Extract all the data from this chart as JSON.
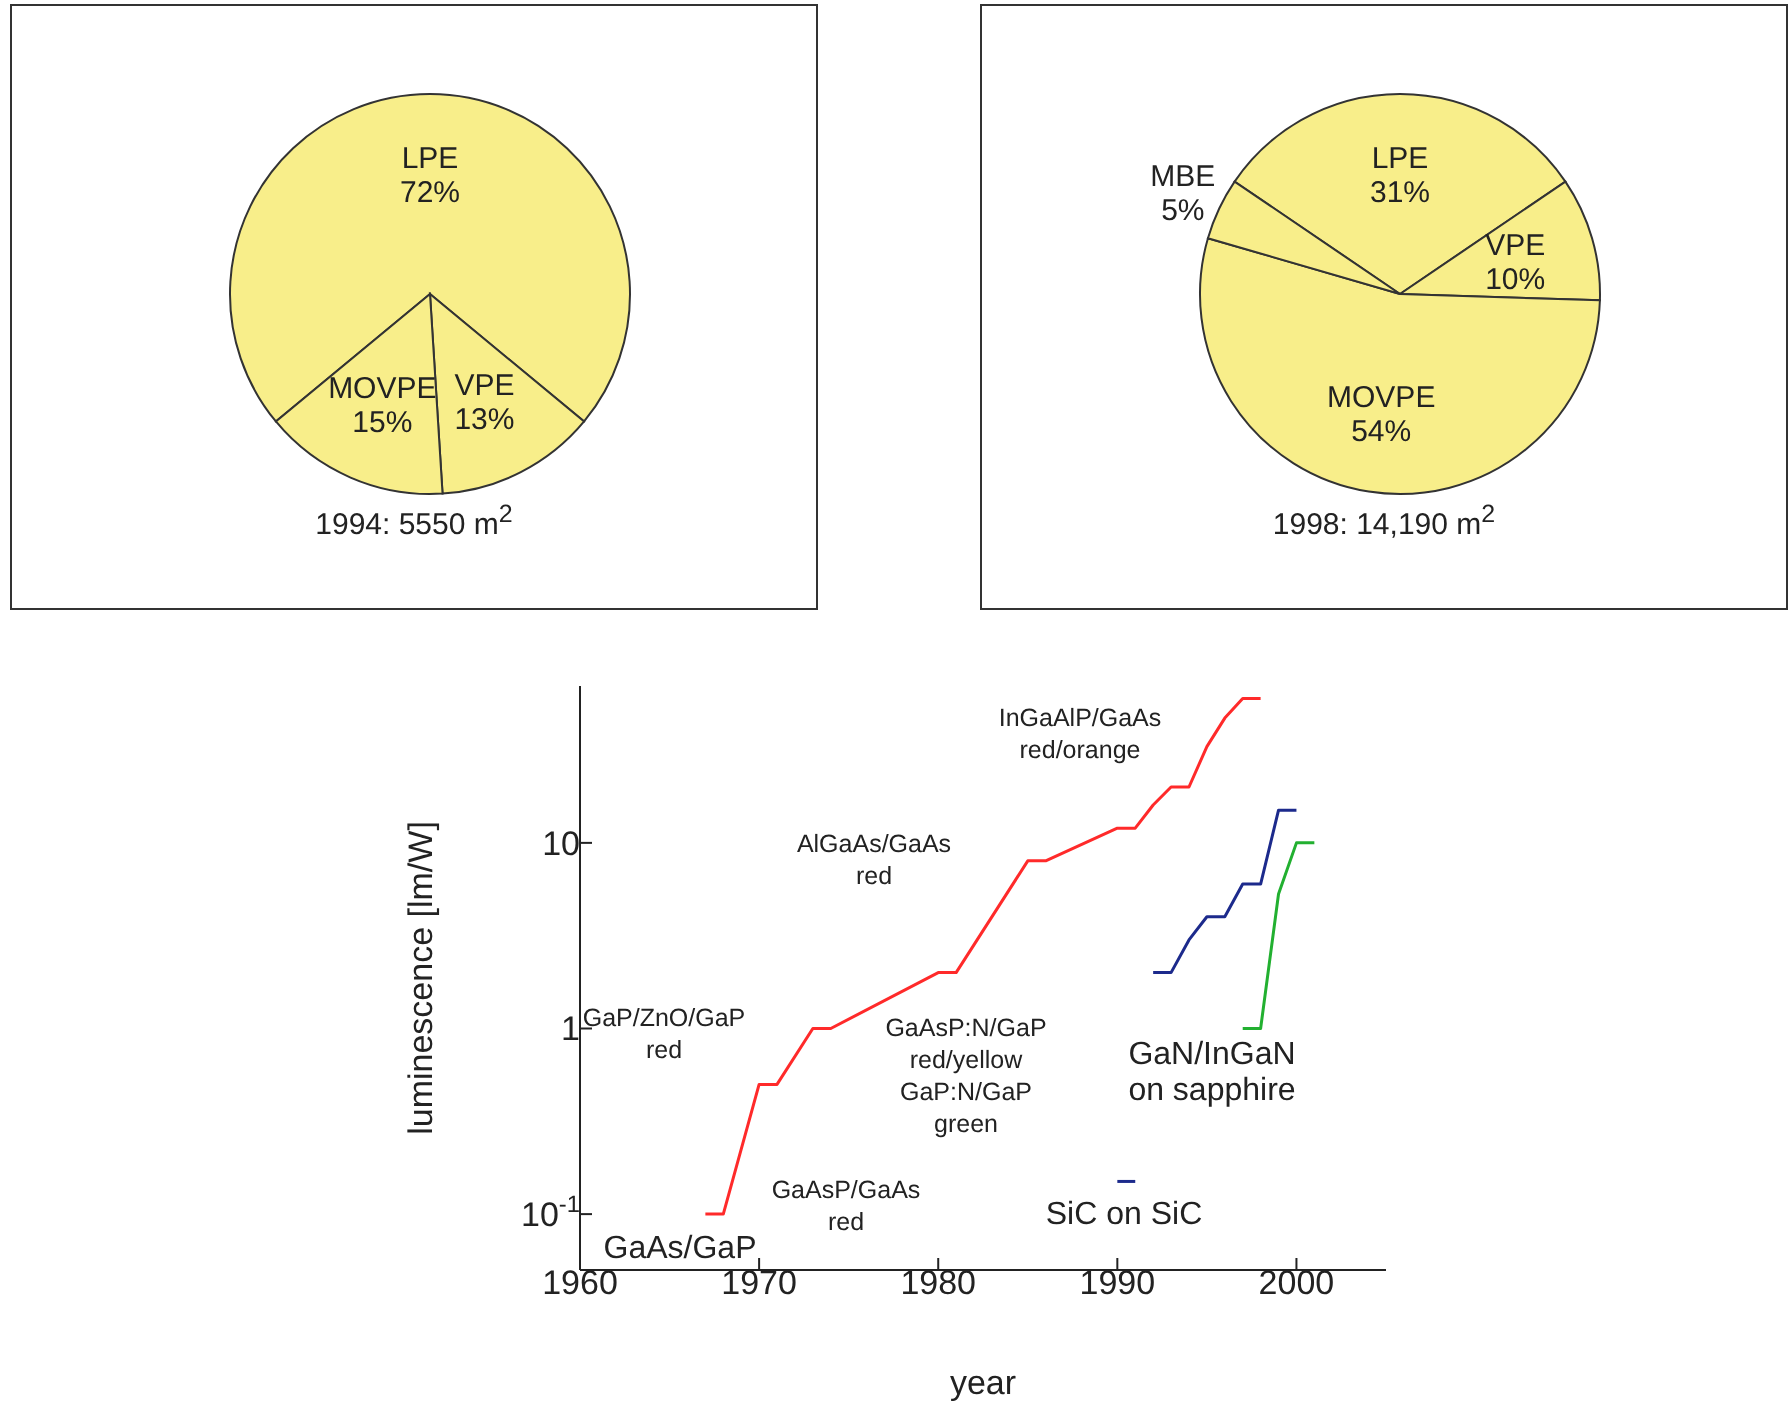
{
  "chart_data": [
    {
      "type": "pie",
      "title": "1994: 5550 m$^{2}$",
      "categories": [
        "LPE",
        "VPE",
        "MOVPE"
      ],
      "values": [
        72,
        13,
        15
      ],
      "value_labels": [
        "72%",
        "13%",
        "15%"
      ],
      "colors": [
        "#f8ee8a",
        "#f8ee8a",
        "#f8ee8a"
      ]
    },
    {
      "type": "pie",
      "title": "1998: 14,190 m$^{2}$",
      "categories": [
        "LPE",
        "VPE",
        "MOVPE",
        "MBE"
      ],
      "values": [
        31,
        10,
        54,
        5
      ],
      "value_labels": [
        "31%",
        "10%",
        "54%",
        "5%"
      ],
      "colors": [
        "#f8ee8a",
        "#f8ee8a",
        "#f8ee8a",
        "#f8ee8a"
      ]
    },
    {
      "type": "line",
      "xlabel": "year",
      "ylabel": "luminescence [lm/W]",
      "log": "y",
      "xlim": [
        1960,
        2005
      ],
      "ylim": [
        0.05,
        70
      ],
      "xticks": [
        1960,
        1970,
        1980,
        1990,
        2000
      ],
      "yticks": [
        {
          "value": 0.1,
          "label": "10$^{-1}$"
        },
        1,
        10
      ],
      "series": [
        {
          "color": "#ff2a2a",
          "x": [
            1967,
            1968,
            1970,
            1971,
            1973,
            1974,
            1980,
            1981,
            1985,
            1986,
            1990,
            1991,
            1992,
            1993,
            1994,
            1995,
            1996,
            1997,
            1998
          ],
          "values": [
            0.1,
            0.1,
            0.5,
            0.5,
            1,
            1,
            2,
            2,
            8,
            8,
            12,
            12,
            16,
            20,
            20,
            33,
            47,
            60,
            60
          ]
        },
        {
          "color": "#1c2a8c",
          "x": [
            1992,
            1993,
            1994,
            1995,
            1996,
            1997,
            1998,
            1999,
            2000
          ],
          "values": [
            2,
            2,
            3,
            4,
            4,
            6,
            6,
            15,
            15
          ]
        },
        {
          "color": "#22b030",
          "x": [
            1997,
            1998,
            1999,
            2000,
            2001
          ],
          "values": [
            1,
            1,
            5.3,
            10,
            10
          ]
        },
        {
          "color": "#1c2a8c",
          "x": [
            1990,
            1991
          ],
          "values": [
            0.15,
            0.15
          ]
        }
      ],
      "annotations": [
        "InGaAlP/GaAs\nred/orange",
        "AlGaAs/GaAs\nred",
        "GaP/ZnO/GaP\nred",
        "GaAsP:N/GaP\nred/yellow\nGaP:N/GaP\ngreen",
        "GaAsP/GaAs\nred",
        "GaAs/GaP",
        "GaN/InGaN\non sapphire",
        "SiC on SiC"
      ]
    }
  ]
}
